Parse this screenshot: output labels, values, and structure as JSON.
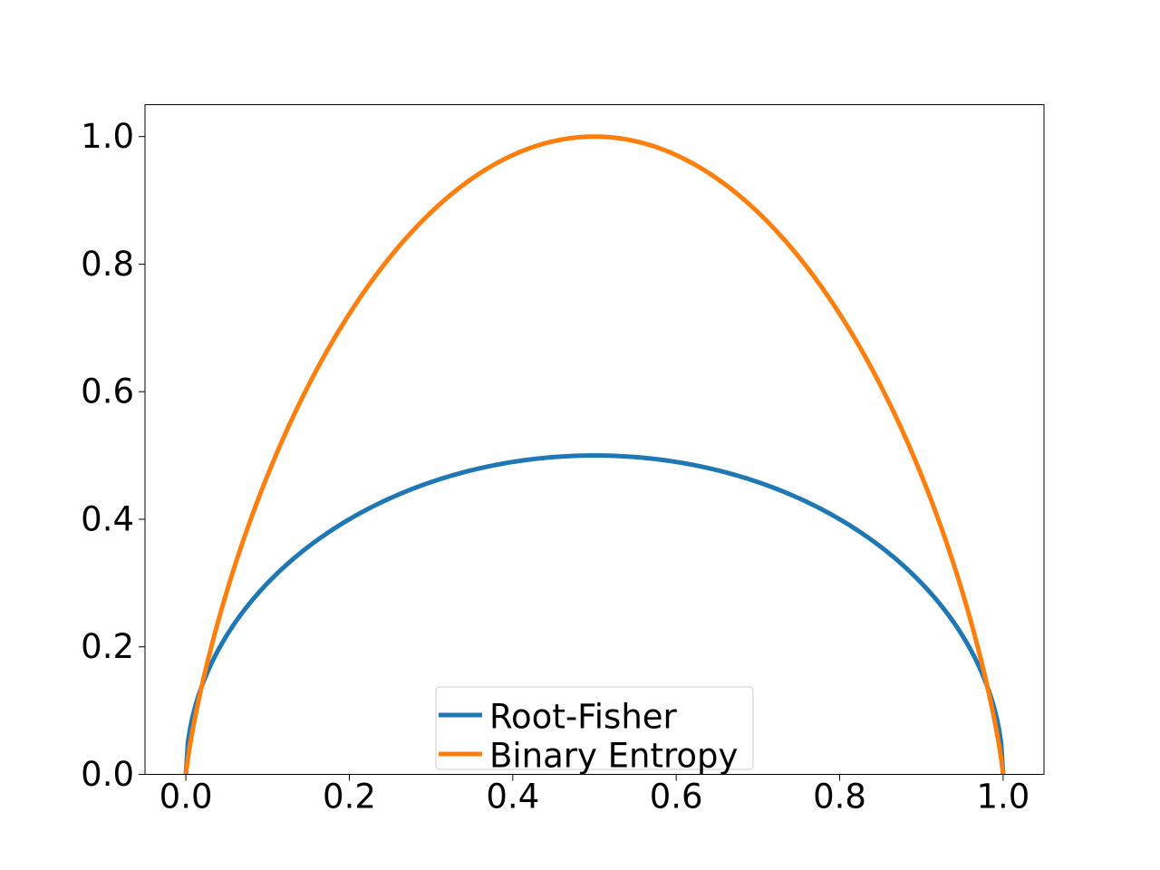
{
  "chart_data": {
    "type": "line",
    "title": "",
    "xlabel": "",
    "ylabel": "",
    "xlim": [
      -0.05,
      1.05
    ],
    "ylim": [
      0.0,
      1.05
    ],
    "xticks": [
      "0.0",
      "0.2",
      "0.4",
      "0.6",
      "0.8",
      "1.0"
    ],
    "yticks": [
      "0.0",
      "0.2",
      "0.4",
      "0.6",
      "0.8",
      "1.0"
    ],
    "grid": false,
    "legend_position": "lower center",
    "x": [
      0.0,
      0.01,
      0.02,
      0.05,
      0.1,
      0.15,
      0.2,
      0.25,
      0.3,
      0.35,
      0.4,
      0.45,
      0.5,
      0.55,
      0.6,
      0.65,
      0.7,
      0.75,
      0.8,
      0.85,
      0.9,
      0.95,
      0.98,
      0.99,
      1.0
    ],
    "series": [
      {
        "name": "Root-Fisher",
        "color": "#1f77b4",
        "values": [
          0.0,
          0.0995,
          0.14,
          0.218,
          0.3,
          0.357,
          0.4,
          0.433,
          0.458,
          0.477,
          0.49,
          0.497,
          0.5,
          0.497,
          0.49,
          0.477,
          0.458,
          0.433,
          0.4,
          0.357,
          0.3,
          0.218,
          0.14,
          0.0995,
          0.0
        ]
      },
      {
        "name": "Binary Entropy",
        "color": "#ff7f0e",
        "values": [
          0.0,
          0.081,
          0.141,
          0.286,
          0.469,
          0.61,
          0.722,
          0.811,
          0.881,
          0.934,
          0.971,
          0.993,
          1.0,
          0.993,
          0.971,
          0.934,
          0.881,
          0.811,
          0.722,
          0.61,
          0.469,
          0.286,
          0.141,
          0.081,
          0.0
        ]
      }
    ]
  }
}
